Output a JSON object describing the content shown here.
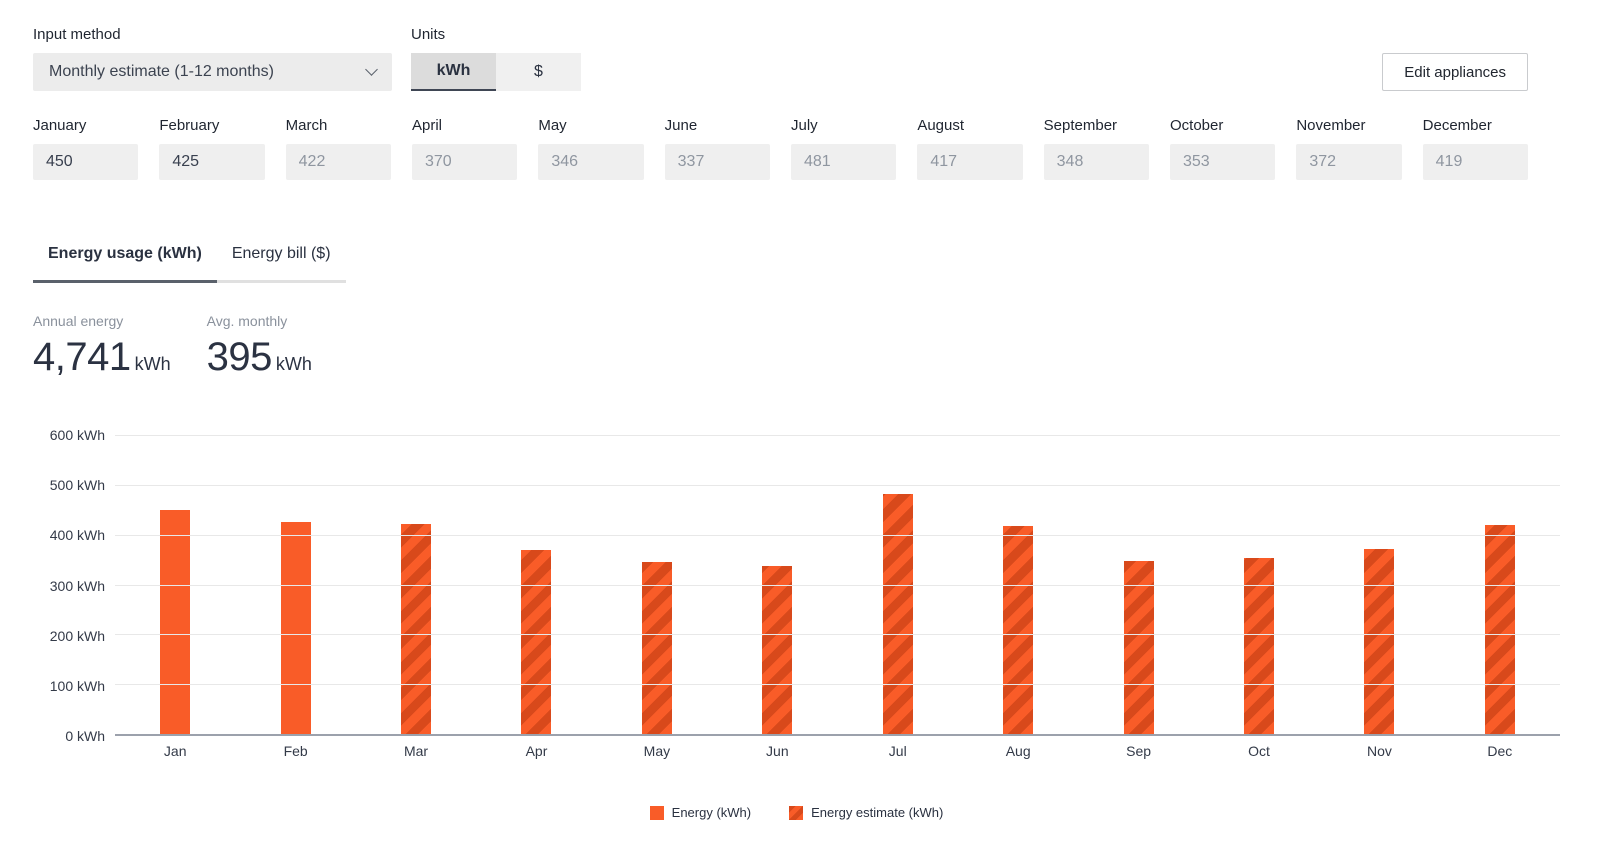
{
  "colors": {
    "accent": "#F95C28",
    "accent_dark": "#D8491B",
    "text_dark": "#262C38",
    "text_gray": "#8A919C",
    "field_bg": "#EFEFEF",
    "grid_line": "#E8E8E8",
    "axis_line": "#9CA1AC"
  },
  "controls": {
    "input_method": {
      "label": "Input method",
      "value": "Monthly estimate (1-12 months)"
    },
    "units": {
      "label": "Units",
      "options": [
        {
          "label": "kWh",
          "selected": true
        },
        {
          "label": "$",
          "selected": false
        }
      ]
    },
    "edit_appliances_label": "Edit appliances"
  },
  "months": [
    {
      "label": "January",
      "value": "450",
      "entered": true
    },
    {
      "label": "February",
      "value": "425",
      "entered": true
    },
    {
      "label": "March",
      "value": "422",
      "entered": false
    },
    {
      "label": "April",
      "value": "370",
      "entered": false
    },
    {
      "label": "May",
      "value": "346",
      "entered": false
    },
    {
      "label": "June",
      "value": "337",
      "entered": false
    },
    {
      "label": "July",
      "value": "481",
      "entered": false
    },
    {
      "label": "August",
      "value": "417",
      "entered": false
    },
    {
      "label": "September",
      "value": "348",
      "entered": false
    },
    {
      "label": "October",
      "value": "353",
      "entered": false
    },
    {
      "label": "November",
      "value": "372",
      "entered": false
    },
    {
      "label": "December",
      "value": "419",
      "entered": false
    }
  ],
  "tabs": [
    {
      "label": "Energy usage (kWh)",
      "active": true
    },
    {
      "label": "Energy bill ($)",
      "active": false
    }
  ],
  "stats": [
    {
      "label": "Annual energy",
      "value": "4,741",
      "unit": "kWh"
    },
    {
      "label": "Avg. monthly",
      "value": "395",
      "unit": "kWh"
    }
  ],
  "chart_data": {
    "type": "bar",
    "title": "",
    "categories": [
      "Jan",
      "Feb",
      "Mar",
      "Apr",
      "May",
      "Jun",
      "Jul",
      "Aug",
      "Sep",
      "Oct",
      "Nov",
      "Dec"
    ],
    "series": [
      {
        "name": "Energy (kWh)",
        "style": "solid",
        "values": [
          450,
          425,
          null,
          null,
          null,
          null,
          null,
          null,
          null,
          null,
          null,
          null
        ]
      },
      {
        "name": "Energy estimate (kWh)",
        "style": "striped",
        "values": [
          null,
          null,
          422,
          370,
          346,
          337,
          481,
          417,
          348,
          353,
          372,
          419
        ]
      }
    ],
    "ylim": [
      0,
      600
    ],
    "ytick_step": 100,
    "ytick_suffix": " kWh",
    "grid": true,
    "legend_position": "bottom"
  }
}
